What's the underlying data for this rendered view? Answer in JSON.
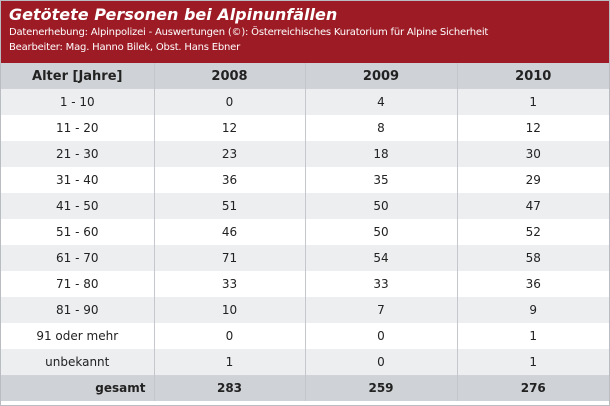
{
  "title": "Getötete Personen bei Alpinunfällen",
  "source": "Datenerhebung: Alpinpolizei - Auswertungen (©): Österreichisches Kuratorium für Alpine Sicherheit",
  "editors": "Bearbeiter: Mag. Hanno Bilek, Obst. Hans Ebner",
  "headers": [
    "Alter [Jahre]",
    "2008",
    "2009",
    "2010"
  ],
  "rows": [
    [
      "1 - 10",
      "0",
      "4",
      "1"
    ],
    [
      "11 - 20",
      "12",
      "8",
      "12"
    ],
    [
      "21 - 30",
      "23",
      "18",
      "30"
    ],
    [
      "31 - 40",
      "36",
      "35",
      "29"
    ],
    [
      "41 - 50",
      "51",
      "50",
      "47"
    ],
    [
      "51 - 60",
      "46",
      "50",
      "52"
    ],
    [
      "61 - 70",
      "71",
      "54",
      "58"
    ],
    [
      "71 - 80",
      "33",
      "33",
      "36"
    ],
    [
      "81 - 90",
      "10",
      "7",
      "9"
    ],
    [
      "91 oder mehr",
      "0",
      "0",
      "1"
    ],
    [
      "unbekannt",
      "1",
      "0",
      "1"
    ]
  ],
  "total": [
    "gesamt",
    "283",
    "259",
    "276"
  ]
}
